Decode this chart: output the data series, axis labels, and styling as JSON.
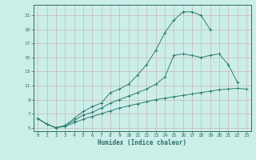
{
  "xlabel": "Humidex (Indice chaleur)",
  "bg_color": "#cceee8",
  "grid_color": "#b0a0a0",
  "line_color": "#2e7d72",
  "xlim": [
    -0.5,
    23.5
  ],
  "ylim": [
    4.5,
    22.5
  ],
  "yticks": [
    5,
    7,
    9,
    11,
    13,
    15,
    17,
    19,
    21
  ],
  "xticks": [
    0,
    1,
    2,
    3,
    4,
    5,
    6,
    7,
    8,
    9,
    10,
    11,
    12,
    13,
    14,
    15,
    16,
    17,
    18,
    19,
    20,
    21,
    22,
    23
  ],
  "curve1_x": [
    0,
    1,
    2,
    3,
    4,
    5,
    6,
    7,
    8,
    9,
    10,
    11,
    12,
    13,
    14,
    15,
    16,
    17,
    18,
    19
  ],
  "curve1_y": [
    6.3,
    5.5,
    5.0,
    5.3,
    6.3,
    7.3,
    8.0,
    8.5,
    10.0,
    10.5,
    11.2,
    12.5,
    14.0,
    16.0,
    18.5,
    20.3,
    21.5,
    21.5,
    21.0,
    19.0
  ],
  "curve2_x": [
    0,
    1,
    2,
    3,
    4,
    5,
    6,
    7,
    8,
    9,
    10,
    11,
    12,
    13,
    14,
    15,
    16,
    17,
    18,
    19,
    20,
    21,
    22
  ],
  "curve2_y": [
    6.3,
    5.5,
    5.0,
    5.3,
    6.0,
    6.8,
    7.2,
    7.8,
    8.5,
    9.0,
    9.5,
    10.0,
    10.5,
    11.2,
    12.2,
    15.3,
    15.5,
    15.3,
    15.0,
    15.3,
    15.5,
    14.0,
    11.5
  ],
  "curve3_x": [
    0,
    1,
    2,
    3,
    4,
    5,
    6,
    7,
    8,
    9,
    10,
    11,
    12,
    13,
    14,
    15,
    16,
    17,
    18,
    19,
    20,
    21,
    22,
    23
  ],
  "curve3_y": [
    6.3,
    5.5,
    5.0,
    5.2,
    5.7,
    6.2,
    6.6,
    7.0,
    7.4,
    7.8,
    8.1,
    8.4,
    8.7,
    9.0,
    9.2,
    9.4,
    9.6,
    9.8,
    10.0,
    10.2,
    10.4,
    10.5,
    10.6,
    10.5
  ]
}
